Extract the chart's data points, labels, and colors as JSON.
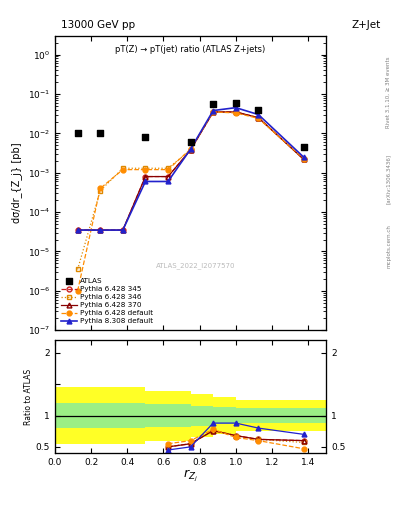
{
  "title_top": "13000 GeV pp",
  "title_right": "Z+Jet",
  "plot_title": "pT(Z) → pT(jet) ratio (ATLAS Z+jets)",
  "xlabel": "r_{Z_j}",
  "ylabel_main": "dσ/dr_{Z_j} [pb]",
  "ylabel_ratio": "Ratio to ATLAS",
  "watermark": "ATLAS_2022_I2077570",
  "rivet_label": "Rivet 3.1.10, ≥ 3M events",
  "arxiv_label": "[arXiv:1306.3436]",
  "mcplots_label": "mcplots.cern.ch",
  "x_ATLAS": [
    0.125,
    0.25,
    0.5,
    0.75,
    0.875,
    1.0,
    1.125,
    1.375
  ],
  "y_ATLAS": [
    0.01,
    0.01,
    0.008,
    0.006,
    0.055,
    0.06,
    0.04,
    0.0045
  ],
  "x_main": [
    0.125,
    0.25,
    0.375,
    0.5,
    0.625,
    0.75,
    0.875,
    1.0,
    1.125,
    1.375
  ],
  "py6_345_y": [
    3.5e-05,
    3.5e-05,
    3.5e-05,
    0.0008,
    0.0008,
    0.0038,
    0.035,
    0.035,
    0.025,
    0.0022
  ],
  "py6_345_color": "#cc2222",
  "py6_345_linestyle": "--",
  "py6_345_label": "Pythia 6.428 345",
  "py6_346_y": [
    3.5e-06,
    0.00035,
    0.0013,
    0.0013,
    0.0013,
    0.0038,
    0.035,
    0.035,
    0.025,
    0.0022
  ],
  "py6_346_color": "#dd8800",
  "py6_346_linestyle": ":",
  "py6_346_label": "Pythia 6.428 346",
  "py6_370_y": [
    3.5e-05,
    3.5e-05,
    3.5e-05,
    0.0008,
    0.0008,
    0.0038,
    0.035,
    0.035,
    0.025,
    0.0022
  ],
  "py6_370_color": "#880000",
  "py6_370_linestyle": "-",
  "py6_370_label": "Pythia 6.428 370",
  "py6_def_y": [
    1e-06,
    0.0004,
    0.0012,
    0.0012,
    0.0012,
    0.004,
    0.035,
    0.033,
    0.024,
    0.0023
  ],
  "py6_def_color": "#ff8c00",
  "py6_def_linestyle": "--",
  "py6_def_label": "Pythia 6.428 default",
  "py8_def_y": [
    3.5e-05,
    3.5e-05,
    3.5e-05,
    0.0006,
    0.0006,
    0.004,
    0.038,
    0.045,
    0.03,
    0.0025
  ],
  "py8_def_color": "#2222cc",
  "py8_def_linestyle": "-",
  "py8_def_label": "Pythia 8.308 default",
  "x_ratio_bins": [
    0.0,
    0.125,
    0.25,
    0.375,
    0.5,
    0.625,
    0.75,
    0.875,
    1.0,
    1.125,
    1.25,
    1.375,
    1.5
  ],
  "yellow_band_low": [
    0.55,
    0.55,
    0.55,
    0.55,
    0.6,
    0.6,
    0.65,
    0.7,
    0.75,
    0.75,
    0.75,
    0.75
  ],
  "yellow_band_high": [
    1.45,
    1.45,
    1.45,
    1.45,
    1.4,
    1.4,
    1.35,
    1.3,
    1.25,
    1.25,
    1.25,
    1.25
  ],
  "green_band_low": [
    0.8,
    0.8,
    0.8,
    0.8,
    0.82,
    0.82,
    0.84,
    0.86,
    0.88,
    0.88,
    0.88,
    0.88
  ],
  "green_band_high": [
    1.2,
    1.2,
    1.2,
    1.2,
    1.18,
    1.18,
    1.16,
    1.14,
    1.12,
    1.12,
    1.12,
    1.12
  ],
  "x_ratio_centers": [
    0.625,
    0.75,
    0.875,
    1.0,
    1.125,
    1.375
  ],
  "ratio_py6_345": [
    0.5,
    0.55,
    0.76,
    0.68,
    0.62,
    0.6
  ],
  "ratio_py6_346": [
    0.5,
    0.55,
    0.76,
    0.68,
    0.62,
    0.57
  ],
  "ratio_py6_370": [
    0.5,
    0.55,
    0.76,
    0.68,
    0.62,
    0.6
  ],
  "ratio_py6_def": [
    0.55,
    0.6,
    0.78,
    0.65,
    0.6,
    0.47
  ],
  "ratio_py8_def": [
    0.45,
    0.5,
    0.88,
    0.88,
    0.8,
    0.7
  ],
  "ylim_main": [
    1e-07,
    3
  ],
  "ylim_ratio": [
    0.4,
    2.2
  ],
  "xlim": [
    0.0,
    1.5
  ]
}
